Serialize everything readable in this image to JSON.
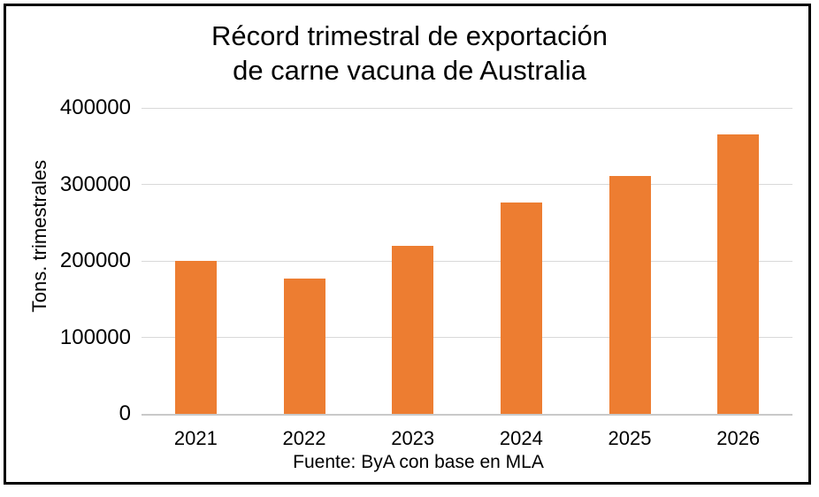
{
  "title": {
    "line1": "Récord trimestral de exportación",
    "line2": "de carne vacuna de Australia"
  },
  "footer": {
    "source": "Fuente: ByA con base en MLA"
  },
  "colors": {
    "bar": "#ED7D31",
    "gridline": "#D9D9D9",
    "axis_line": "#C9C9C9",
    "text": "#000000",
    "frame_border": "#000000"
  },
  "chart_data": {
    "type": "bar",
    "title": "Récord trimestral de exportación de carne vacuna de Australia",
    "categories": [
      "2021",
      "2022",
      "2023",
      "2024",
      "2025",
      "2026"
    ],
    "values": [
      200000,
      177000,
      220000,
      276000,
      311000,
      365000
    ],
    "xlabel": "",
    "ylabel": "Tons. trimestrales",
    "ylim": [
      0,
      400000
    ],
    "yticks": [
      0,
      100000,
      200000,
      300000,
      400000
    ],
    "grid": true,
    "legend": false,
    "bar_color": "#ED7D31",
    "source": "Fuente: ByA con base en MLA"
  }
}
